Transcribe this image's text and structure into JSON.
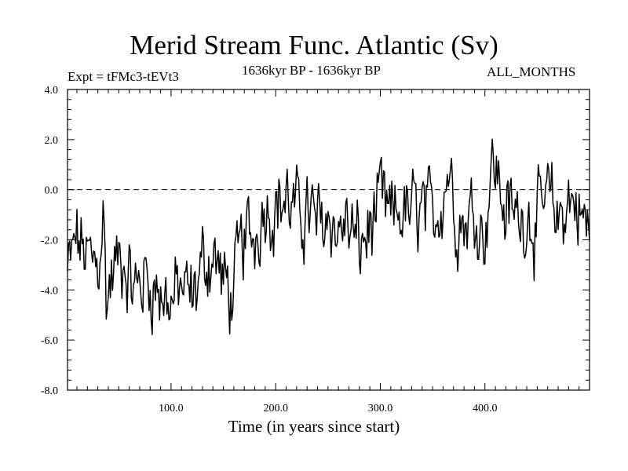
{
  "chart_data": {
    "type": "line",
    "title": "Merid Stream Func. Atlantic (Sv)",
    "subtitle_left": "Expt = tFMc3-tEVt3",
    "subtitle_center": "1636kyr BP - 1636kyr BP",
    "subtitle_right": "ALL_MONTHS",
    "xlabel": "Time (in years since start)",
    "ylabel": "",
    "xlim": [
      1,
      500
    ],
    "ylim": [
      -8.0,
      4.0
    ],
    "x_ticks": [
      100,
      200,
      300,
      400
    ],
    "x_tick_labels": [
      "100.0",
      "200.0",
      "300.0",
      "400.0"
    ],
    "y_ticks": [
      4,
      2,
      0,
      -2,
      -4,
      -6,
      -8
    ],
    "y_tick_labels": [
      "4.0",
      "2.0",
      "0.0",
      "-2.0",
      "-4.0",
      "-6.0",
      "-8.0"
    ],
    "reference_line": 0.0,
    "series": [
      {
        "name": "Merid Stream Func. Atlantic",
        "x": [
          1,
          10,
          20,
          30,
          35,
          38,
          45,
          55,
          65,
          75,
          85,
          95,
          100,
          110,
          120,
          130,
          140,
          150,
          158,
          160,
          170,
          180,
          190,
          200,
          210,
          220,
          230,
          240,
          250,
          260,
          270,
          280,
          290,
          300,
          310,
          320,
          330,
          340,
          350,
          360,
          366,
          370,
          380,
          390,
          400,
          405,
          410,
          420,
          430,
          440,
          450,
          460,
          470,
          480,
          490,
          500
        ],
        "values": [
          -3.4,
          -2.0,
          -2.8,
          -3.2,
          -0.8,
          -4.4,
          -3.2,
          -2.6,
          -4.1,
          -3.4,
          -3.9,
          -4.2,
          -4.6,
          -3.9,
          -4.4,
          -3.0,
          -2.5,
          -3.7,
          -4.3,
          -3.9,
          -2.0,
          -1.8,
          -0.4,
          -0.6,
          -0.3,
          -1.1,
          -0.8,
          -1.6,
          -1.0,
          -1.6,
          -1.4,
          -2.4,
          -1.6,
          -0.6,
          -1.3,
          -0.8,
          -1.1,
          -0.9,
          -1.4,
          0.1,
          1.1,
          -0.5,
          -1.3,
          -0.8,
          -1.7,
          0.7,
          0.9,
          -0.9,
          -1.1,
          -0.8,
          -1.4,
          -0.5,
          -1.2,
          -0.3,
          -0.7,
          -1.9
        ]
      }
    ]
  }
}
